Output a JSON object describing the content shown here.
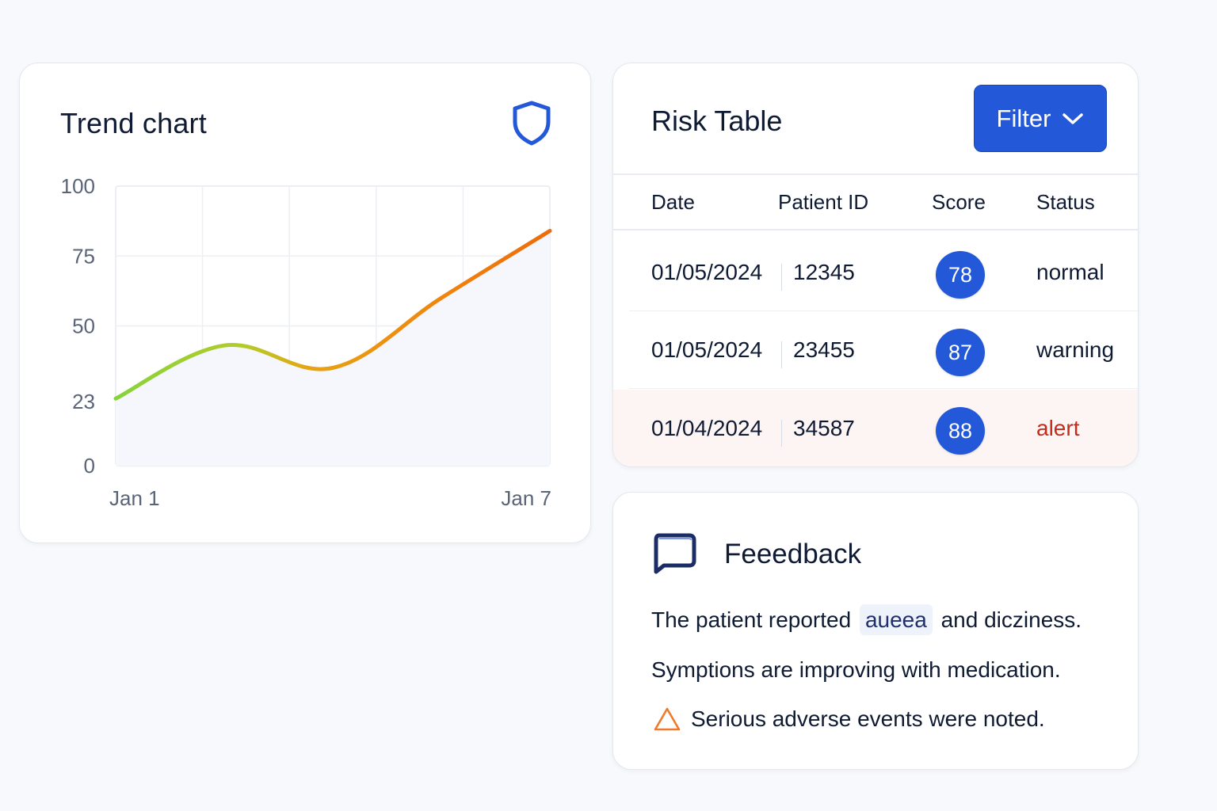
{
  "trend_card": {
    "title": "Trend chart",
    "icon": "shield-icon"
  },
  "chart_data": {
    "type": "line",
    "title": "Trend chart",
    "xlabel": "",
    "ylabel": "",
    "x_tick_labels": [
      "Jan 1",
      "Jan 7"
    ],
    "y_tick_labels": [
      "0",
      "23",
      "50",
      "75",
      "100"
    ],
    "ylim": [
      0,
      100
    ],
    "grid": true,
    "series": [
      {
        "x": [
          0,
          0.25,
          0.5,
          0.75,
          1.0
        ],
        "values": [
          24,
          43,
          35,
          60,
          84
        ]
      }
    ],
    "line_gradient": [
      "#86d33a",
      "#e8a313",
      "#ef7d0d",
      "#ee6c0a"
    ]
  },
  "risk_table": {
    "title": "Risk Table",
    "filter_label": "Filter",
    "columns": [
      "Date",
      "Patient ID",
      "Score",
      "Status"
    ],
    "rows": [
      {
        "date": "01/05/2024",
        "patient_id": "12345",
        "score": "78",
        "status": "normal"
      },
      {
        "date": "01/05/2024",
        "patient_id": "23455",
        "score": "87",
        "status": "warning"
      },
      {
        "date": "01/04/2024",
        "patient_id": "34587",
        "score": "88",
        "status": "alert"
      }
    ],
    "colors": {
      "badge": "#2358d8",
      "alert_text": "#c42b1c",
      "alert_row_bg": "#fdf5f4"
    }
  },
  "feedback": {
    "title": "Feeedback",
    "line1_before": "The patient reported",
    "line1_highlight": "auеea",
    "line1_after": "and diczіness.",
    "line2": "Symptions are improving with medication.",
    "line3": "Serious adverse events were noted.",
    "icons": {
      "chat": "chat-bubble-icon",
      "warning": "warning-triangle-icon"
    }
  }
}
